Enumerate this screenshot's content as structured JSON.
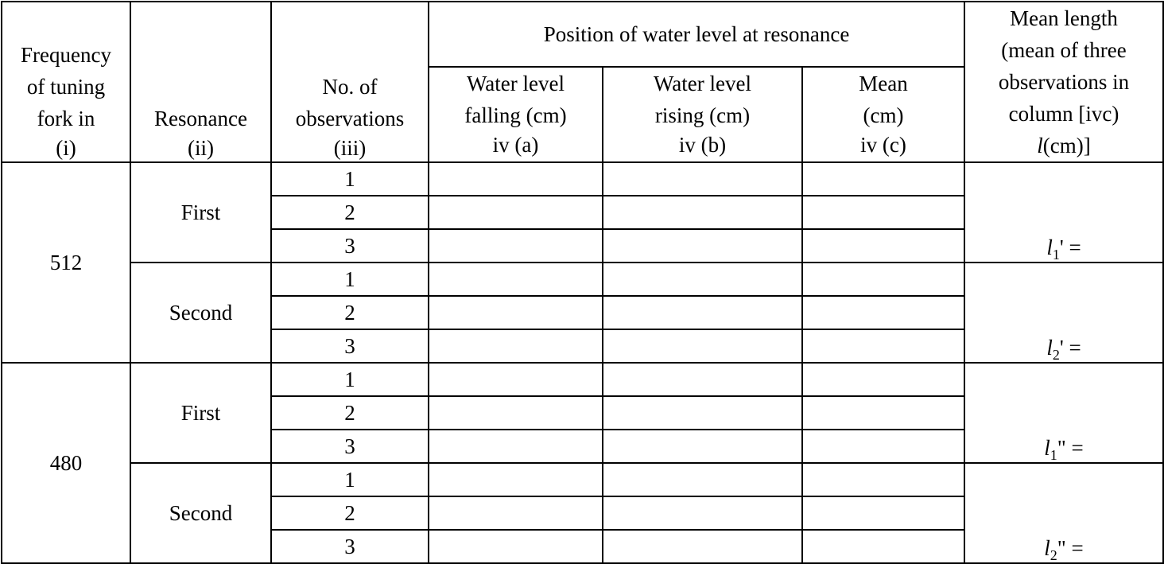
{
  "headers": {
    "col1": [
      "Frequency",
      "of tuning",
      "fork in",
      "(i)"
    ],
    "col2": [
      "Resonance",
      "(ii)"
    ],
    "col3": [
      "No. of",
      "observations",
      "(iii)"
    ],
    "group": "Position of water level at resonance",
    "col4a": [
      "Water level",
      "falling (cm)",
      "iv (a)"
    ],
    "col4b": [
      "Water level",
      "rising (cm)",
      "iv (b)"
    ],
    "col4c": [
      "Mean",
      "(cm)",
      "iv (c)"
    ],
    "col5": [
      "Mean length",
      "(mean of three",
      "observations in",
      "column [ivc)",
      "(cm)]"
    ],
    "col5_symbol": "l"
  },
  "rows": {
    "freq_512": "512",
    "freq_480": "480",
    "first": "First",
    "second": "Second",
    "obs": [
      "1",
      "2",
      "3"
    ]
  },
  "means": {
    "m1": {
      "sym": "l",
      "sub": "1",
      "suffix": "' ="
    },
    "m2": {
      "sym": "l",
      "sub": "2",
      "suffix": "' ="
    },
    "m3": {
      "sym": "l",
      "sub": "1",
      "suffix": "\" ="
    },
    "m4": {
      "sym": "l",
      "sub": "2",
      "suffix": "\" ="
    }
  }
}
